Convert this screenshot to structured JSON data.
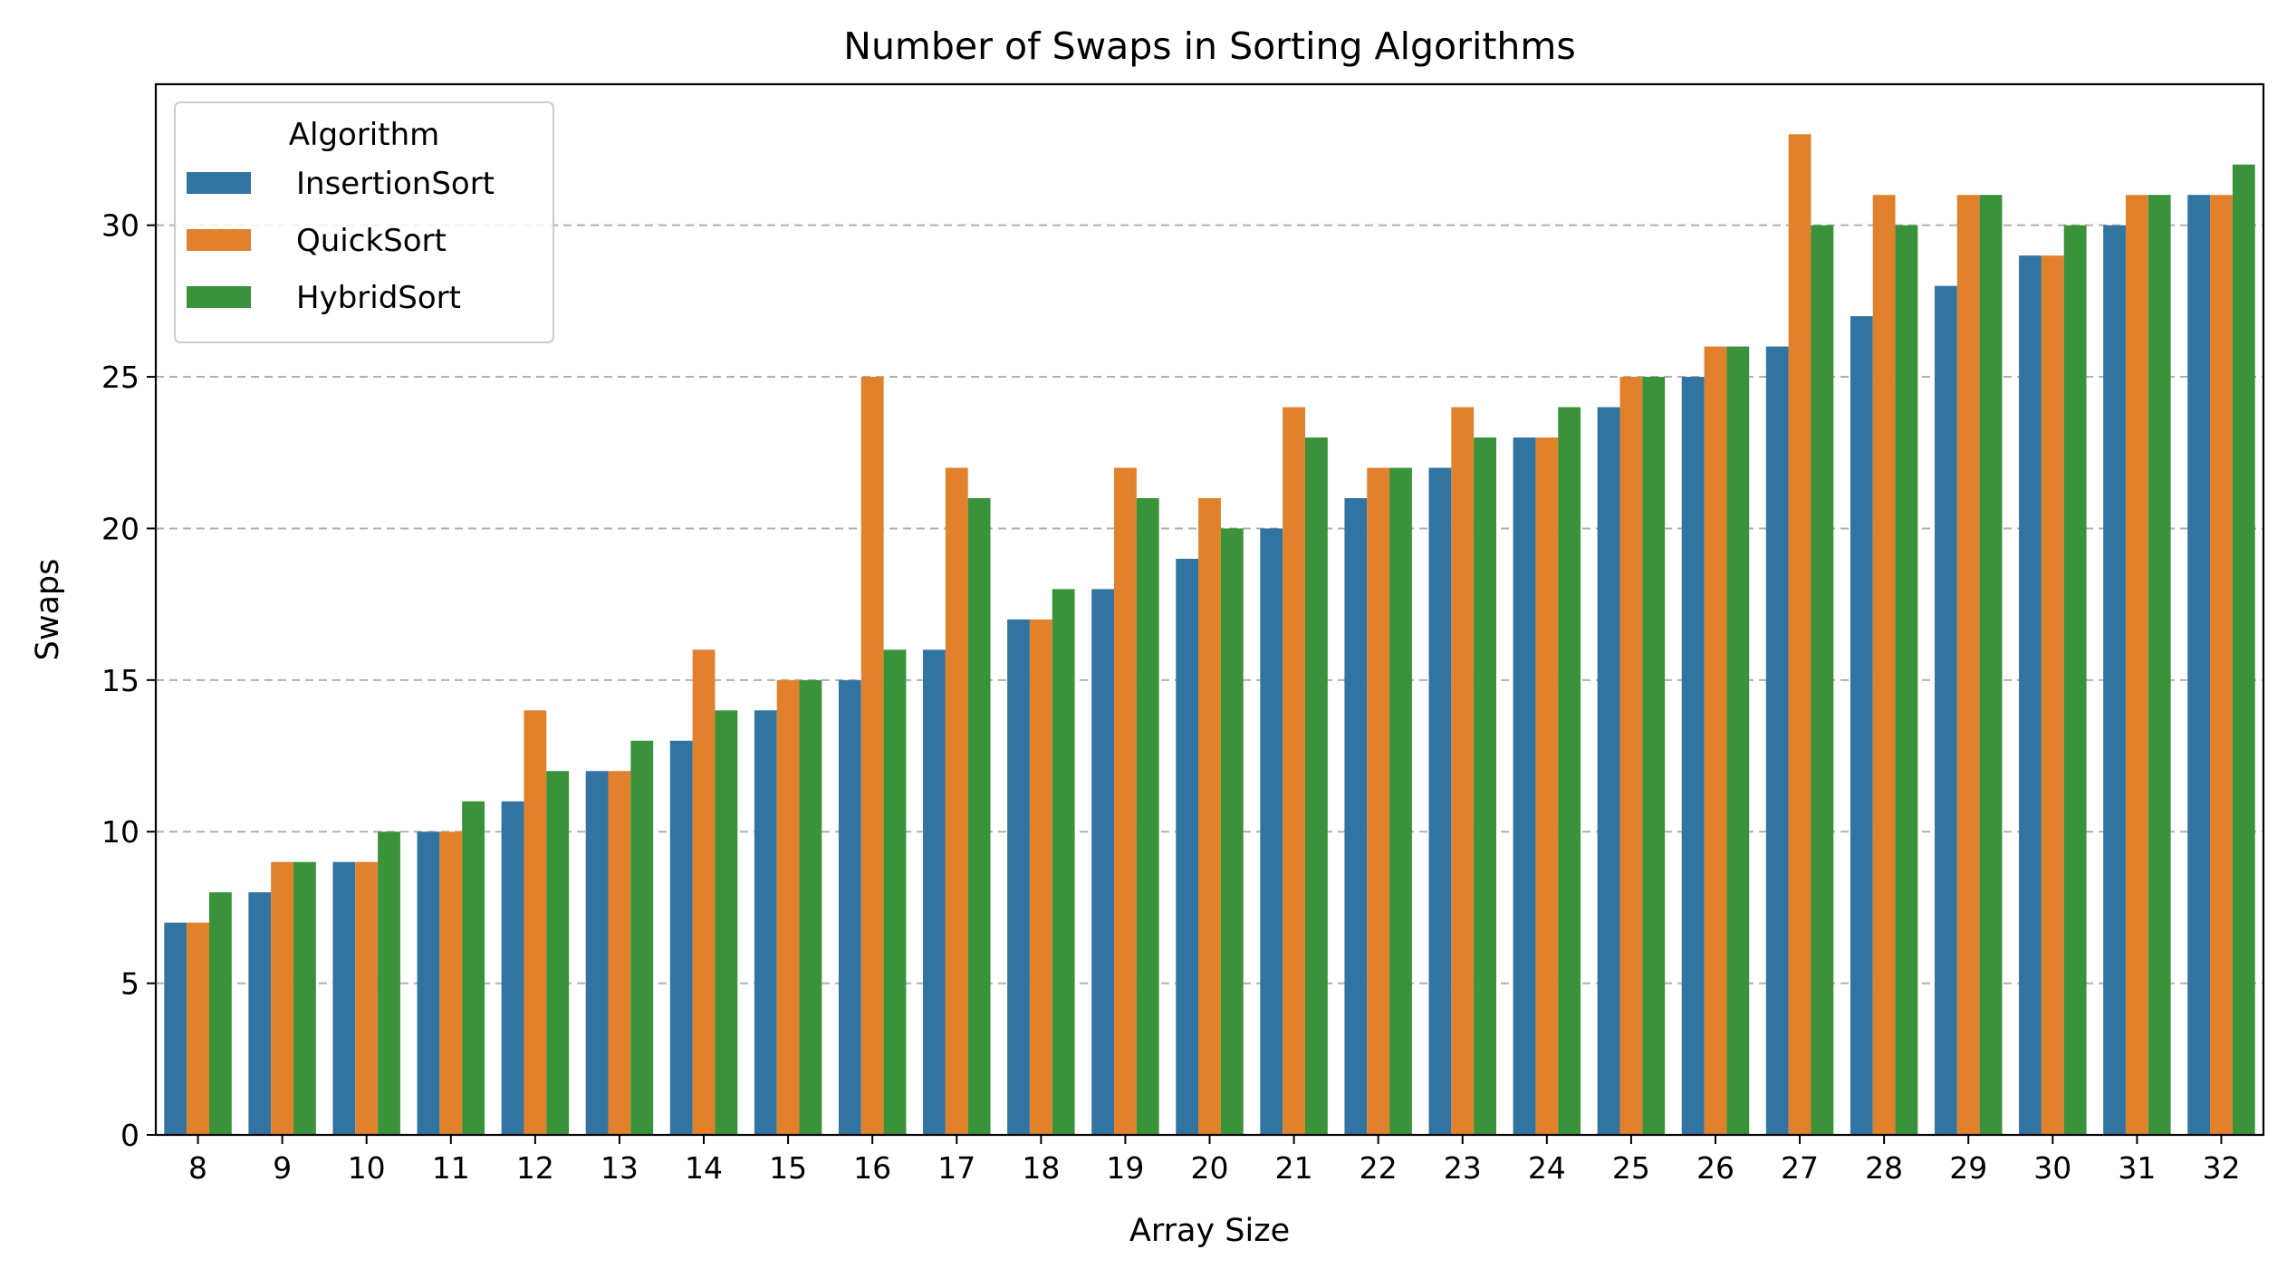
{
  "chart_data": {
    "type": "bar",
    "title": "Number of Swaps in Sorting Algorithms",
    "xlabel": "Array Size",
    "ylabel": "Swaps",
    "categories": [
      "8",
      "9",
      "10",
      "11",
      "12",
      "13",
      "14",
      "15",
      "16",
      "17",
      "18",
      "19",
      "20",
      "21",
      "22",
      "23",
      "24",
      "25",
      "26",
      "27",
      "28",
      "29",
      "30",
      "31",
      "32"
    ],
    "series": [
      {
        "name": "InsertionSort",
        "color": "#3274a1",
        "values": [
          7,
          8,
          9,
          10,
          11,
          12,
          13,
          14,
          15,
          16,
          17,
          18,
          19,
          20,
          21,
          22,
          23,
          24,
          25,
          26,
          27,
          28,
          29,
          30,
          31
        ]
      },
      {
        "name": "QuickSort",
        "color": "#e1812c",
        "values": [
          7,
          9,
          9,
          10,
          14,
          12,
          16,
          15,
          25,
          22,
          17,
          22,
          21,
          24,
          22,
          24,
          23,
          25,
          26,
          33,
          31,
          31,
          29,
          31,
          31
        ]
      },
      {
        "name": "HybridSort",
        "color": "#3a923a",
        "values": [
          8,
          9,
          10,
          11,
          12,
          13,
          14,
          15,
          16,
          21,
          18,
          21,
          20,
          23,
          22,
          23,
          24,
          25,
          26,
          30,
          30,
          31,
          30,
          31,
          32
        ]
      }
    ],
    "ylim": [
      0,
      34.65
    ],
    "yticks": [
      0,
      5,
      10,
      15,
      20,
      25,
      30
    ],
    "grid": "y-dashed",
    "legend": {
      "title": "Algorithm",
      "placement": "top-left"
    }
  }
}
